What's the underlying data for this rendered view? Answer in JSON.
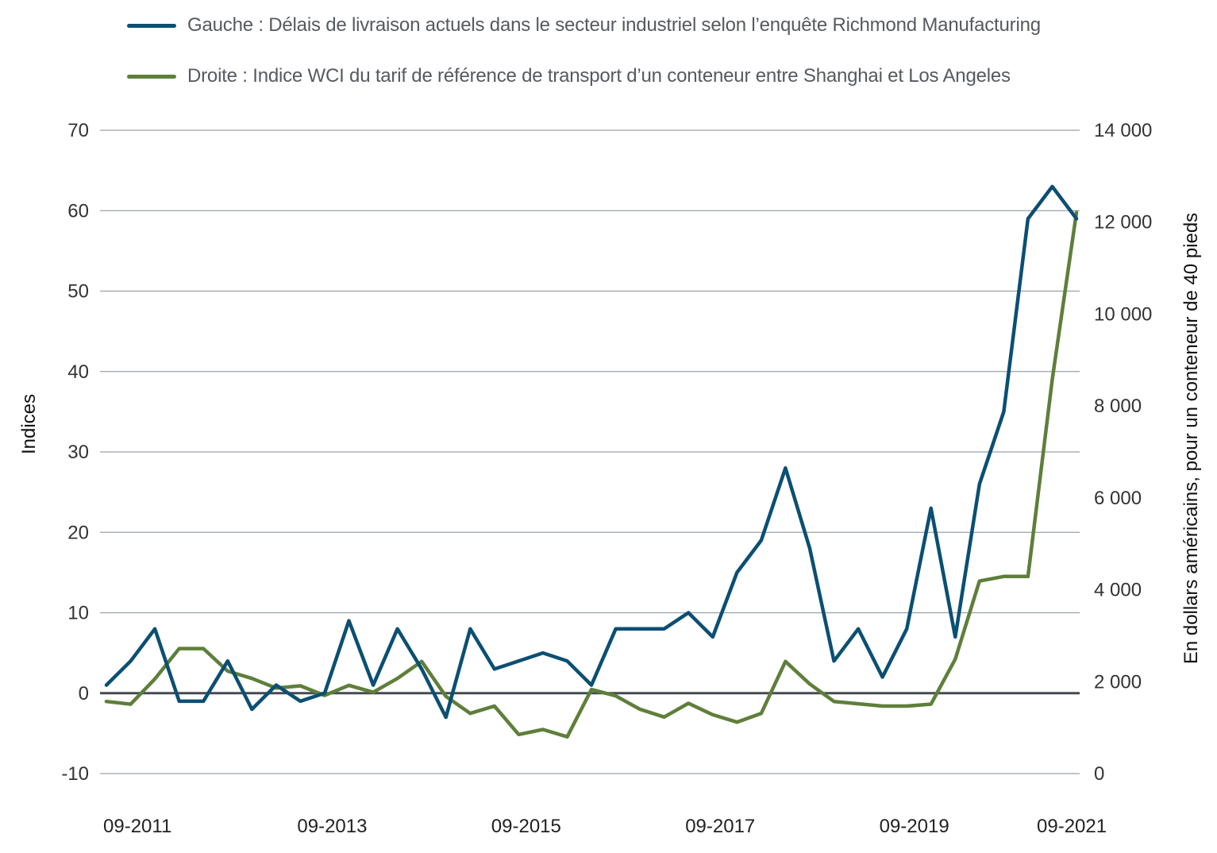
{
  "legend": [
    {
      "label": "Gauche : Délais de livraison actuels dans le secteur industriel selon l’enquête Richmond Manufacturing",
      "color": "#0b4f73"
    },
    {
      "label": "Droite : Indice WCI du tarif de référence de transport d’un conteneur entre Shanghai et Los Angeles",
      "color": "#5e7f3a"
    }
  ],
  "chart_data": {
    "type": "line",
    "xlabel": "",
    "ylabel": "Indices",
    "y2label": "En dollars américains, pour un conteneur de 40 pieds",
    "ylim": [
      -10,
      70
    ],
    "y2lim": [
      0,
      14000
    ],
    "yticks": [
      "70",
      "60",
      "50",
      "40",
      "30",
      "20",
      "10",
      "0",
      "-10"
    ],
    "y2ticks": [
      "14 000",
      "12 000",
      "10 000",
      "8 000",
      "6 000",
      "4 000",
      "2 000",
      "0"
    ],
    "xticks": [
      "09-2011",
      "09-2013",
      "09-2015",
      "09-2017",
      "09-2019",
      "09-2021"
    ],
    "grid": true,
    "zero_line": true,
    "series": [
      {
        "name": "Gauche : Délais de livraison actuels dans le secteur industriel selon l’enquête Richmond Manufacturing",
        "axis": "left",
        "color": "#0b4f73",
        "values": [
          1,
          4,
          8,
          -1,
          -1,
          4,
          -2,
          1,
          -1,
          0,
          9,
          1,
          8,
          3,
          -3,
          8,
          3,
          4,
          5,
          4,
          1,
          8,
          8,
          8,
          10,
          7,
          15,
          19,
          28,
          18,
          4,
          8,
          2,
          8,
          23,
          7,
          26,
          35,
          59,
          63,
          59
        ]
      },
      {
        "name": "Droite : Indice WCI du tarif de référence de transport d’un conteneur entre Shanghai et Los Angeles",
        "axis": "right",
        "color": "#5e7f3a",
        "values": [
          1570,
          1510,
          2060,
          2720,
          2720,
          2230,
          2070,
          1860,
          1910,
          1700,
          1920,
          1770,
          2070,
          2440,
          1680,
          1310,
          1470,
          850,
          960,
          800,
          1830,
          1690,
          1400,
          1230,
          1530,
          1280,
          1120,
          1310,
          2440,
          1950,
          1570,
          1520,
          1470,
          1470,
          1510,
          2490,
          4190,
          4290,
          4290,
          8580,
          12210
        ]
      }
    ]
  }
}
